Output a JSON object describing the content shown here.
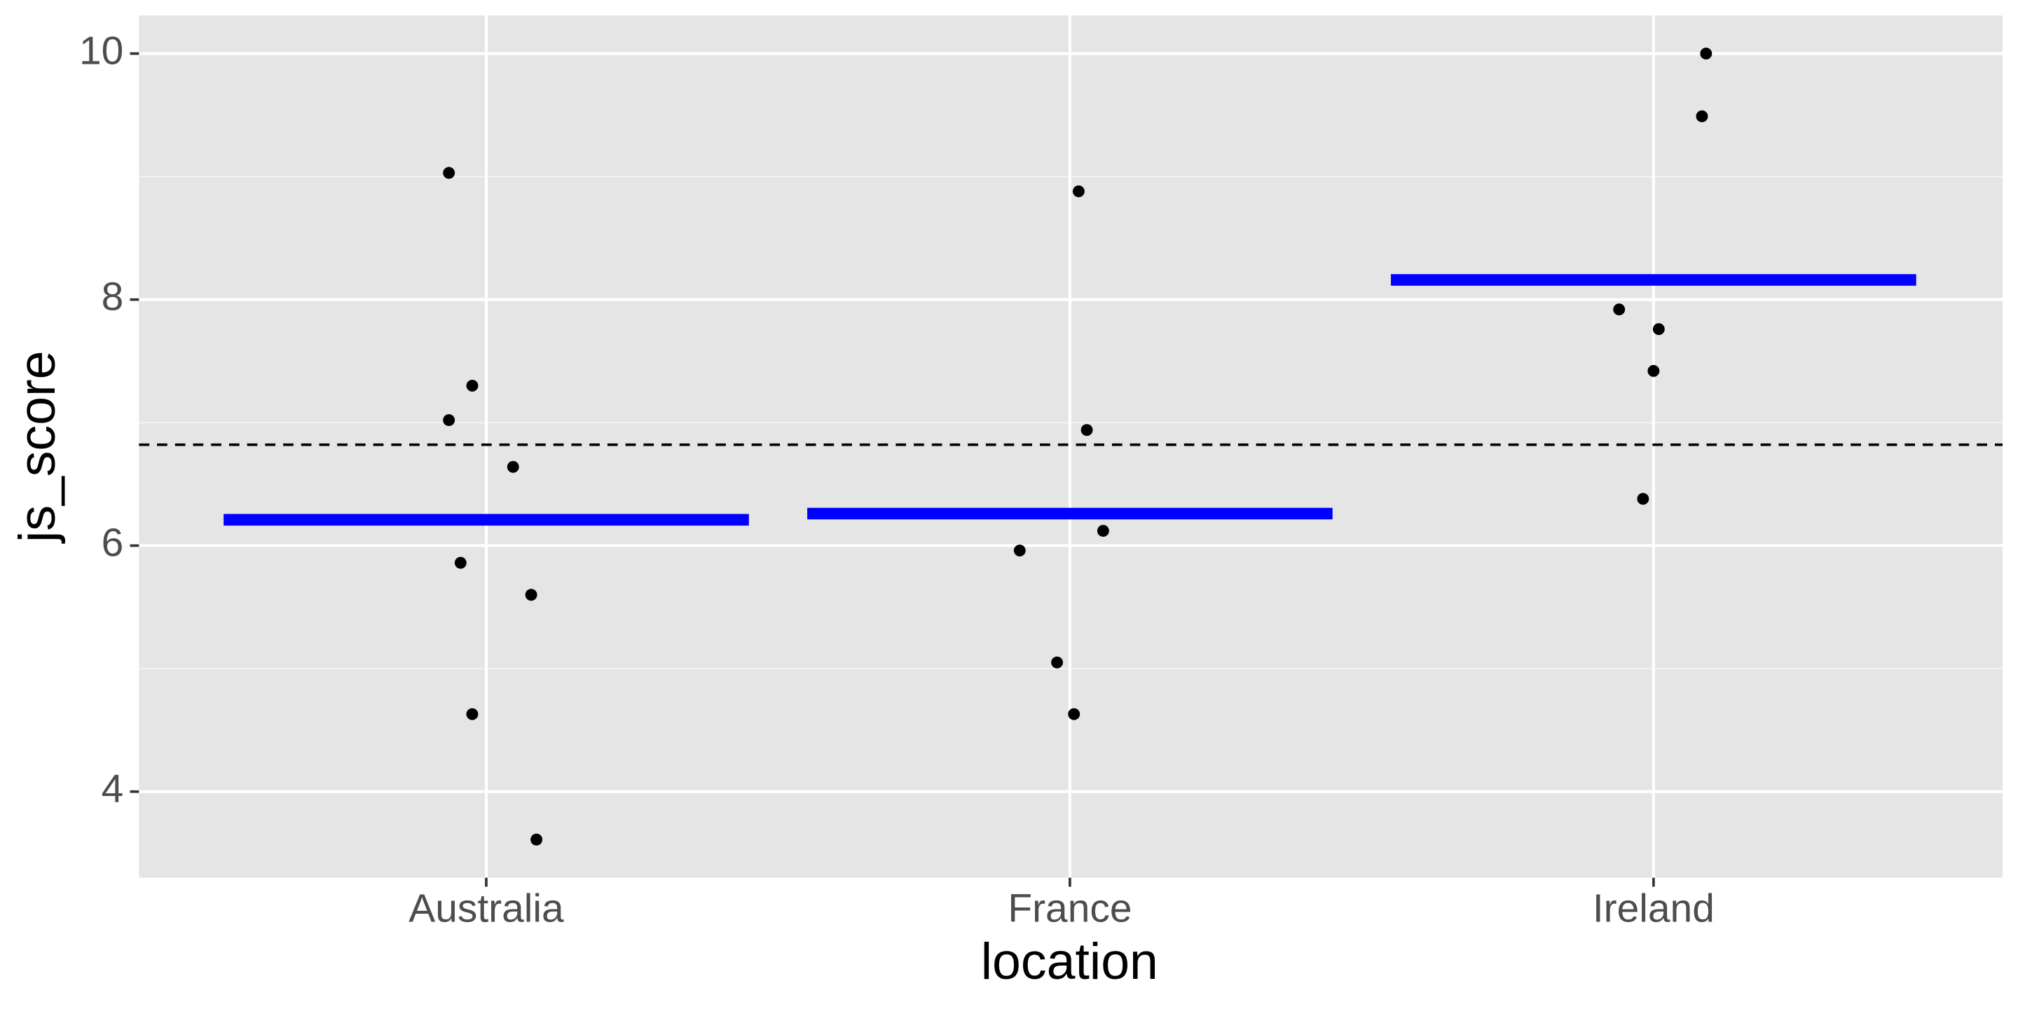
{
  "chart_data": {
    "type": "scatter",
    "x_label": "location",
    "y_label": "js_score",
    "xlim": [
      0.405,
      3.598
    ],
    "ylim": [
      3.3,
      10.31
    ],
    "xticks": [
      {
        "value": 1,
        "label": "Australia"
      },
      {
        "value": 2,
        "label": "France"
      },
      {
        "value": 3,
        "label": "Ireland"
      }
    ],
    "yticks": [
      4,
      6,
      8,
      10
    ],
    "y_minor_gridlines": [
      5,
      7,
      9
    ],
    "grid": true,
    "points": {
      "color": "#000000",
      "x": [
        0.936,
        0.976,
        0.936,
        1.046,
        0.956,
        1.077,
        0.976,
        1.086,
        2.015,
        2.029,
        2.057,
        1.914,
        1.978,
        2.007,
        3.09,
        3.083,
        2.941,
        3.009,
        3.0,
        2.982
      ],
      "y": [
        9.03,
        7.3,
        7.02,
        6.64,
        5.86,
        5.6,
        4.63,
        3.61,
        8.88,
        6.94,
        6.12,
        5.96,
        5.05,
        4.63,
        10.0,
        9.49,
        7.92,
        7.76,
        7.42,
        6.38
      ]
    },
    "means": {
      "color": "#0000ff",
      "values": [
        6.21,
        6.26,
        8.16
      ]
    },
    "reference_line": {
      "value": 6.82,
      "color": "#000000",
      "dashed": true
    }
  }
}
